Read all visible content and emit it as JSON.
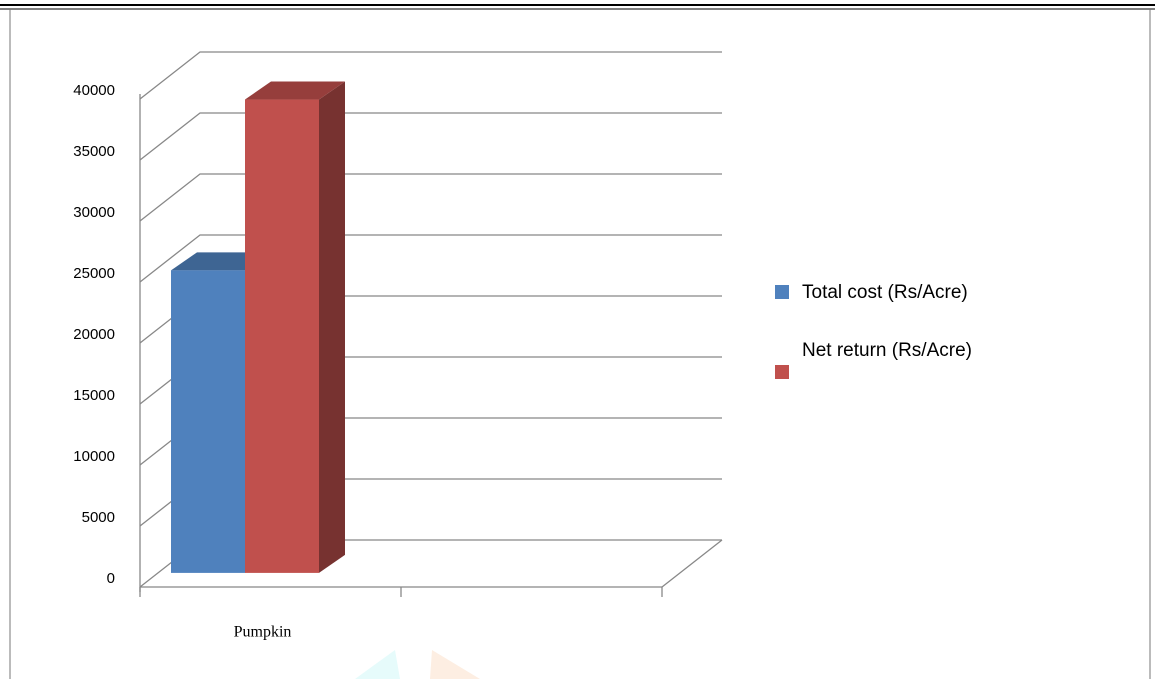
{
  "chart_data": {
    "type": "bar3d",
    "categories": [
      "Pumpkin",
      null
    ],
    "series": [
      {
        "name": "Total cost (Rs/Acre)",
        "color": "#4f81bd",
        "values": [
          24800,
          null
        ]
      },
      {
        "name": "Net return (Rs/Acre)",
        "color": "#c0504d",
        "values": [
          38800,
          null
        ]
      }
    ],
    "ylim": [
      0,
      40000
    ],
    "yticks": [
      0,
      5000,
      10000,
      15000,
      20000,
      25000,
      30000,
      35000,
      40000
    ],
    "grid": true,
    "legend": "right"
  }
}
